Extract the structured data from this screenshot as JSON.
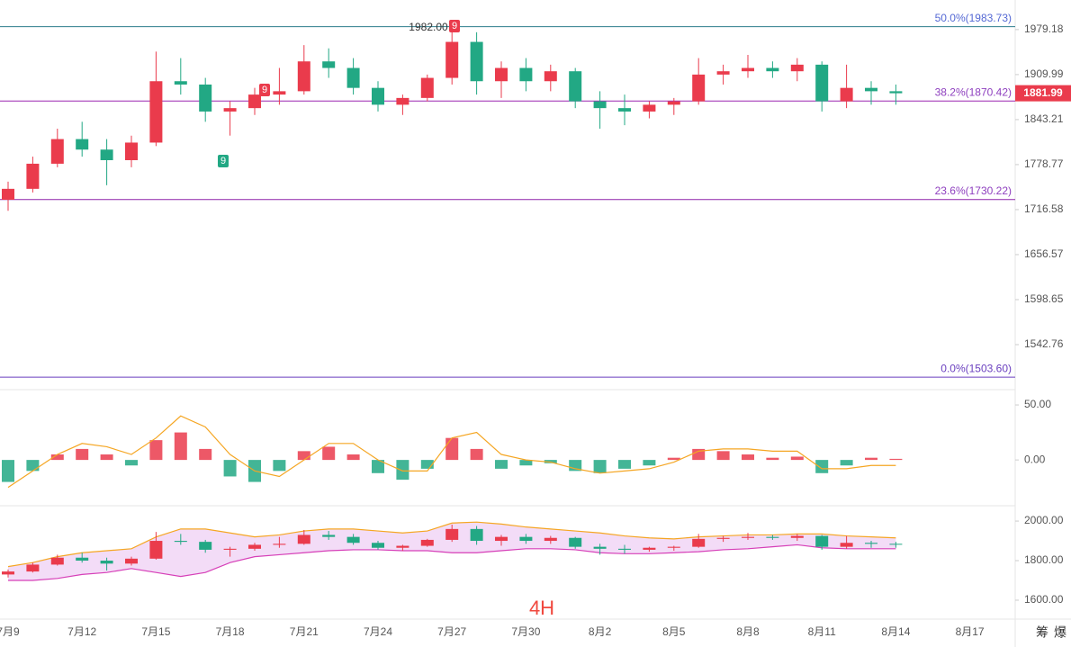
{
  "chart_data": [
    {
      "type": "candlestick",
      "log": true,
      "ylim": [
        1492,
        2026
      ],
      "yticks": [
        {
          "value": 1979.18,
          "label": "1979.18"
        },
        {
          "value": 1909.99,
          "label": "1909.99"
        },
        {
          "value": 1843.21,
          "label": "1843.21"
        },
        {
          "value": 1778.77,
          "label": "1778.77"
        },
        {
          "value": 1716.58,
          "label": "1716.58"
        },
        {
          "value": 1656.57,
          "label": "1656.57"
        },
        {
          "value": 1598.65,
          "label": "1598.65"
        },
        {
          "value": 1542.76,
          "label": "1542.76"
        }
      ],
      "categories": [
        "7月9",
        null,
        null,
        "7月12",
        null,
        null,
        "7月15",
        null,
        null,
        "7月18",
        null,
        null,
        "7月21",
        null,
        null,
        "7月24",
        null,
        null,
        "7月27",
        null,
        null,
        "7月30",
        null,
        null,
        "8月2",
        null,
        null,
        "8月5",
        null,
        null,
        "8月8",
        null,
        null,
        "8月11",
        null,
        null,
        "8月14",
        null,
        null,
        "8月17"
      ],
      "open": [
        1730,
        1745,
        1780,
        1815,
        1800,
        1785,
        1810,
        1900,
        1895,
        1855,
        1860,
        1880,
        1885,
        1930,
        1920,
        1890,
        1865,
        1875,
        1905,
        1960,
        1900,
        1920,
        1900,
        1915,
        1870,
        1860,
        1855,
        1865,
        1870,
        1910,
        1915,
        1920,
        1915,
        1925,
        1870,
        1890,
        1885,
        null,
        null,
        null
      ],
      "high": [
        1755,
        1790,
        1830,
        1840,
        1815,
        1820,
        1945,
        1935,
        1905,
        1870,
        1890,
        1920,
        1955,
        1950,
        1935,
        1900,
        1880,
        1910,
        1982,
        1975,
        1930,
        1935,
        1925,
        1920,
        1885,
        1880,
        1870,
        1875,
        1935,
        1925,
        1940,
        1930,
        1935,
        1930,
        1925,
        1900,
        1895,
        null,
        null,
        null
      ],
      "low": [
        1715,
        1740,
        1775,
        1790,
        1750,
        1775,
        1805,
        1880,
        1840,
        1820,
        1850,
        1865,
        1880,
        1905,
        1880,
        1855,
        1850,
        1870,
        1895,
        1880,
        1875,
        1885,
        1885,
        1860,
        1830,
        1835,
        1845,
        1850,
        1865,
        1895,
        1905,
        1905,
        1900,
        1855,
        1860,
        1865,
        1865,
        null,
        null,
        null
      ],
      "close": [
        1745,
        1780,
        1815,
        1800,
        1785,
        1810,
        1900,
        1895,
        1855,
        1860,
        1880,
        1885,
        1930,
        1920,
        1890,
        1865,
        1875,
        1905,
        1960,
        1900,
        1920,
        1900,
        1915,
        1870,
        1860,
        1855,
        1865,
        1870,
        1910,
        1915,
        1920,
        1915,
        1925,
        1870,
        1890,
        1885,
        1882,
        null,
        null,
        null
      ],
      "up_color": "#ea3b4c",
      "down_color": "#22a884",
      "levels": [
        {
          "label": "50.0%(1983.73)",
          "value": 1983.73,
          "color": "#2c7d8c",
          "label_color": "#5468d4"
        },
        {
          "label": "38.2%(1870.42)",
          "value": 1870.42,
          "color": "#9c27b0",
          "label_color": "#8e3fbf"
        },
        {
          "label": "23.6%(1730.22)",
          "value": 1730.22,
          "color": "#8e24aa",
          "label_color": "#8e3fbf"
        },
        {
          "label": "0.0%(1503.60)",
          "value": 1503.6,
          "color": "#6a3fbf",
          "label_color": "#6a3fbf"
        }
      ],
      "last_price": 1881.99,
      "annotations": [
        "1982.00",
        "9",
        "9",
        "9"
      ]
    },
    {
      "type": "macd",
      "ylim": [
        -40,
        62.3
      ],
      "yticks": [
        {
          "value": 50,
          "label": "50.00"
        },
        {
          "value": 0,
          "label": "0.00"
        }
      ],
      "values": [
        -20,
        -10,
        5,
        10,
        5,
        -5,
        18,
        25,
        10,
        -15,
        -20,
        -10,
        8,
        12,
        5,
        -12,
        -18,
        -8,
        20,
        10,
        -8,
        -5,
        -3,
        -10,
        -12,
        -8,
        -5,
        2,
        10,
        8,
        5,
        2,
        3,
        -12,
        -5,
        2,
        1,
        null,
        null,
        null
      ],
      "line": {
        "color": "#f5a623",
        "values": [
          -25,
          -10,
          5,
          15,
          12,
          5,
          20,
          40,
          30,
          5,
          -10,
          -15,
          0,
          15,
          15,
          0,
          -10,
          -10,
          20,
          25,
          5,
          0,
          -2,
          -8,
          -12,
          -10,
          -8,
          -2,
          8,
          10,
          10,
          8,
          8,
          -8,
          -8,
          -5,
          -5,
          null,
          null,
          null
        ]
      }
    },
    {
      "type": "bollinger",
      "ylim": [
        1518,
        2064
      ],
      "yticks": [
        {
          "value": 2000,
          "label": "2000.00"
        },
        {
          "value": 1800,
          "label": "1800.00"
        },
        {
          "value": 1600,
          "label": "1600.00"
        }
      ],
      "upper": [
        1770,
        1790,
        1820,
        1840,
        1850,
        1860,
        1920,
        1960,
        1960,
        1940,
        1920,
        1930,
        1950,
        1960,
        1960,
        1950,
        1940,
        1950,
        1990,
        1995,
        1985,
        1970,
        1960,
        1950,
        1940,
        1925,
        1915,
        1910,
        1920,
        1925,
        1930,
        1930,
        1935,
        1935,
        1925,
        1920,
        1915,
        null,
        null,
        null
      ],
      "lower": [
        1700,
        1700,
        1710,
        1730,
        1740,
        1760,
        1740,
        1720,
        1740,
        1790,
        1820,
        1830,
        1840,
        1850,
        1855,
        1855,
        1850,
        1850,
        1840,
        1840,
        1850,
        1860,
        1860,
        1855,
        1840,
        1835,
        1835,
        1840,
        1845,
        1855,
        1860,
        1870,
        1880,
        1865,
        1860,
        1860,
        1860,
        null,
        null,
        null
      ],
      "upper_color": "#f5a623",
      "lower_color": "#d63fb8",
      "fill": "#f3dcf7"
    }
  ],
  "timeframe": "4H",
  "buttons": [
    "筹",
    "爆"
  ]
}
